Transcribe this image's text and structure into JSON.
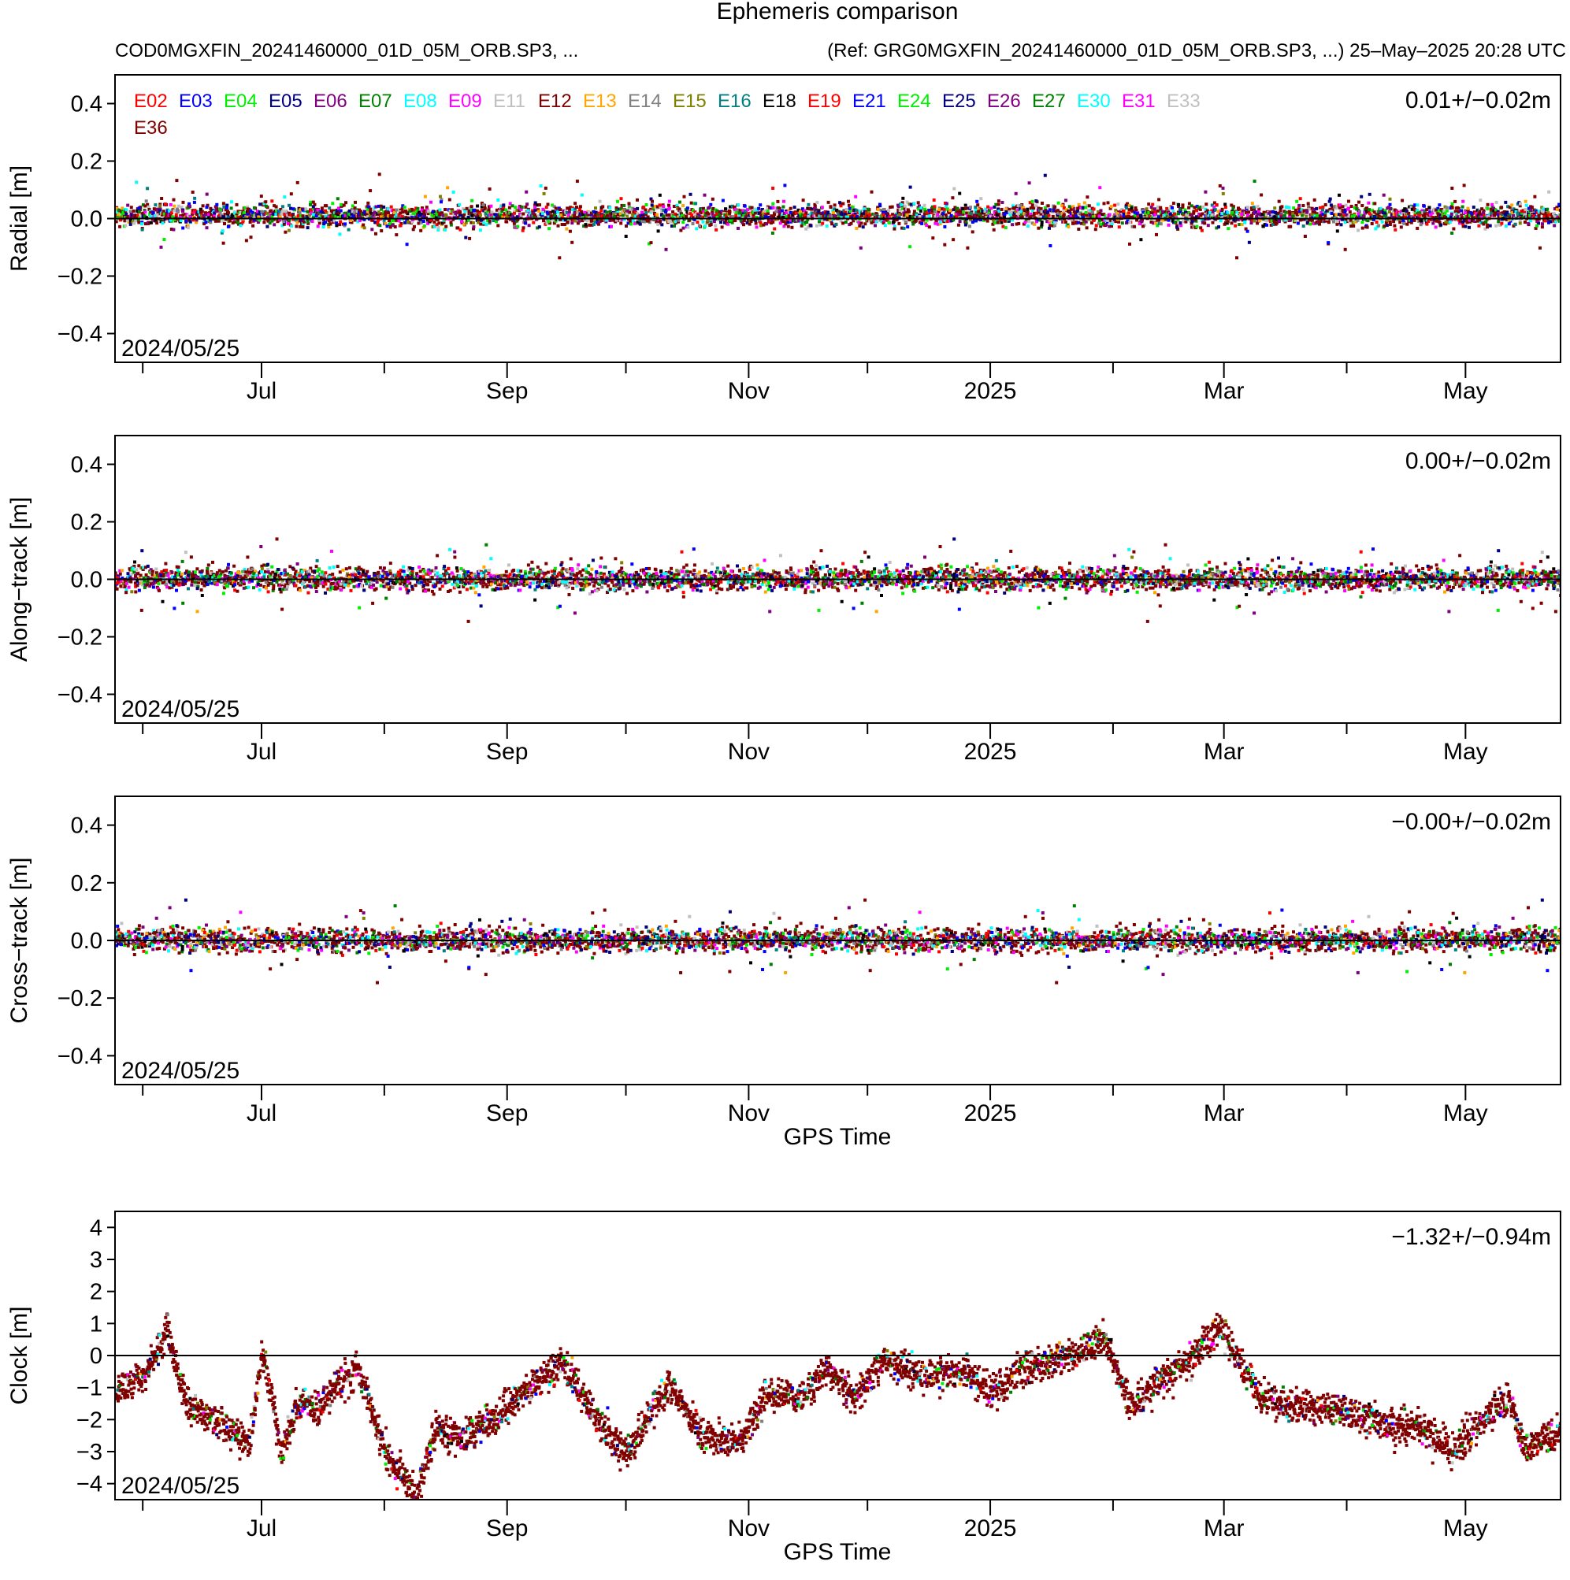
{
  "header": {
    "title": "Ephemeris comparison",
    "left_subtitle": "COD0MGXFIN_20241460000_01D_05M_ORB.SP3, ...",
    "right_subtitle": "(Ref: GRG0MGXFIN_20241460000_01D_05M_ORB.SP3, ...) 25–May–2025 20:28 UTC"
  },
  "legend": [
    {
      "name": "E02",
      "color": "#ff0000"
    },
    {
      "name": "E03",
      "color": "#0000ff"
    },
    {
      "name": "E04",
      "color": "#00ee00"
    },
    {
      "name": "E05",
      "color": "#000080"
    },
    {
      "name": "E06",
      "color": "#800080"
    },
    {
      "name": "E07",
      "color": "#008000"
    },
    {
      "name": "E08",
      "color": "#00ffff"
    },
    {
      "name": "E09",
      "color": "#ff00ff"
    },
    {
      "name": "E11",
      "color": "#c0c0c0"
    },
    {
      "name": "E12",
      "color": "#800000"
    },
    {
      "name": "E13",
      "color": "#ffa500"
    },
    {
      "name": "E14",
      "color": "#808080"
    },
    {
      "name": "E15",
      "color": "#808000"
    },
    {
      "name": "E16",
      "color": "#008080"
    },
    {
      "name": "E18",
      "color": "#000000"
    },
    {
      "name": "E19",
      "color": "#ff0000"
    },
    {
      "name": "E21",
      "color": "#0000ff"
    },
    {
      "name": "E24",
      "color": "#00ee00"
    },
    {
      "name": "E25",
      "color": "#000080"
    },
    {
      "name": "E26",
      "color": "#800080"
    },
    {
      "name": "E27",
      "color": "#008000"
    },
    {
      "name": "E30",
      "color": "#00ffff"
    },
    {
      "name": "E31",
      "color": "#ff00ff"
    },
    {
      "name": "E33",
      "color": "#c0c0c0"
    },
    {
      "name": "E36",
      "color": "#800000"
    }
  ],
  "chart_data": [
    {
      "type": "scatter",
      "ylabel": "Radial [m]",
      "ylim": [
        -0.5,
        0.5
      ],
      "yticks": [
        "−0.4",
        "−0.2",
        "0.0",
        "0.2",
        "0.4"
      ],
      "ytick_values": [
        -0.4,
        -0.2,
        0.0,
        0.2,
        0.4
      ],
      "xlim": [
        "2024-05-25",
        "2025-05-25"
      ],
      "xticks": [
        "Jul",
        "Sep",
        "Nov",
        "2025",
        "Mar",
        "May"
      ],
      "xtick_dates": [
        "2024-07-01",
        "2024-09-01",
        "2024-11-01",
        "2025-01-01",
        "2025-03-01",
        "2025-05-01"
      ],
      "stat": "0.01+/−0.02m",
      "date_label": "2024/05/25",
      "xlabel": "",
      "series_mean": 0.01,
      "series_sd": 0.02
    },
    {
      "type": "scatter",
      "ylabel": "Along−track [m]",
      "ylim": [
        -0.5,
        0.5
      ],
      "yticks": [
        "−0.4",
        "−0.2",
        "0.0",
        "0.2",
        "0.4"
      ],
      "ytick_values": [
        -0.4,
        -0.2,
        0.0,
        0.2,
        0.4
      ],
      "xlim": [
        "2024-05-25",
        "2025-05-25"
      ],
      "xticks": [
        "Jul",
        "Sep",
        "Nov",
        "2025",
        "Mar",
        "May"
      ],
      "xtick_dates": [
        "2024-07-01",
        "2024-09-01",
        "2024-11-01",
        "2025-01-01",
        "2025-03-01",
        "2025-05-01"
      ],
      "stat": "0.00+/−0.02m",
      "date_label": "2024/05/25",
      "xlabel": "",
      "series_mean": 0.0,
      "series_sd": 0.02
    },
    {
      "type": "scatter",
      "ylabel": "Cross−track [m]",
      "ylim": [
        -0.5,
        0.5
      ],
      "yticks": [
        "−0.4",
        "−0.2",
        "0.0",
        "0.2",
        "0.4"
      ],
      "ytick_values": [
        -0.4,
        -0.2,
        0.0,
        0.2,
        0.4
      ],
      "xlim": [
        "2024-05-25",
        "2025-05-25"
      ],
      "xticks": [
        "Jul",
        "Sep",
        "Nov",
        "2025",
        "Mar",
        "May"
      ],
      "xtick_dates": [
        "2024-07-01",
        "2024-09-01",
        "2024-11-01",
        "2025-01-01",
        "2025-03-01",
        "2025-05-01"
      ],
      "stat": "−0.00+/−0.02m",
      "date_label": "2024/05/25",
      "xlabel": "GPS Time",
      "series_mean": 0.0,
      "series_sd": 0.02
    },
    {
      "type": "scatter",
      "ylabel": "Clock [m]",
      "ylim": [
        -4.5,
        4.5
      ],
      "yticks": [
        "−4",
        "−3",
        "−2",
        "−1",
        "0",
        "1",
        "2",
        "3",
        "4"
      ],
      "ytick_values": [
        -4,
        -3,
        -2,
        -1,
        0,
        1,
        2,
        3,
        4
      ],
      "xlim": [
        "2024-05-25",
        "2025-05-25"
      ],
      "xticks": [
        "Jul",
        "Sep",
        "Nov",
        "2025",
        "Mar",
        "May"
      ],
      "xtick_dates": [
        "2024-07-01",
        "2024-09-01",
        "2024-11-01",
        "2025-01-01",
        "2025-03-01",
        "2025-05-01"
      ],
      "stat": "−1.32+/−0.94m",
      "date_label": "2024/05/25",
      "xlabel": "GPS Time",
      "series_mean": -1.32,
      "series_sd": 0.94,
      "clock_trend": {
        "x": [
          "2024-05-25",
          "2024-06-01",
          "2024-06-07",
          "2024-06-12",
          "2024-06-20",
          "2024-06-28",
          "2024-07-01",
          "2024-07-06",
          "2024-07-10",
          "2024-07-15",
          "2024-07-25",
          "2024-08-01",
          "2024-08-09",
          "2024-08-14",
          "2024-08-20",
          "2024-08-28",
          "2024-09-05",
          "2024-09-15",
          "2024-09-25",
          "2024-10-01",
          "2024-10-12",
          "2024-10-20",
          "2024-10-30",
          "2024-11-05",
          "2024-11-15",
          "2024-11-20",
          "2024-11-28",
          "2024-12-05",
          "2024-12-15",
          "2024-12-25",
          "2025-01-01",
          "2025-01-10",
          "2025-01-20",
          "2025-01-30",
          "2025-02-04",
          "2025-02-05",
          "2025-02-12",
          "2025-02-20",
          "2025-02-28",
          "2025-03-10",
          "2025-03-20",
          "2025-03-30",
          "2025-04-10",
          "2025-04-20",
          "2025-04-28",
          "2025-05-05",
          "2025-05-12",
          "2025-05-16",
          "2025-05-25"
        ],
        "y": [
          -1.1,
          -0.7,
          0.8,
          -1.6,
          -2.1,
          -2.7,
          0.2,
          -3.1,
          -1.5,
          -1.6,
          -0.4,
          -3.0,
          -4.4,
          -2.2,
          -2.6,
          -2.0,
          -1.2,
          -0.2,
          -2.3,
          -3.0,
          -0.9,
          -2.5,
          -2.7,
          -1.2,
          -1.3,
          -0.4,
          -1.3,
          -0.2,
          -0.6,
          -0.5,
          -1.1,
          -0.4,
          0.0,
          0.5,
          -1.1,
          -1.6,
          -0.9,
          -0.2,
          0.9,
          -1.3,
          -1.6,
          -1.7,
          -2.2,
          -2.2,
          -3.0,
          -2.0,
          -1.4,
          -2.9,
          -2.4
        ]
      }
    }
  ]
}
